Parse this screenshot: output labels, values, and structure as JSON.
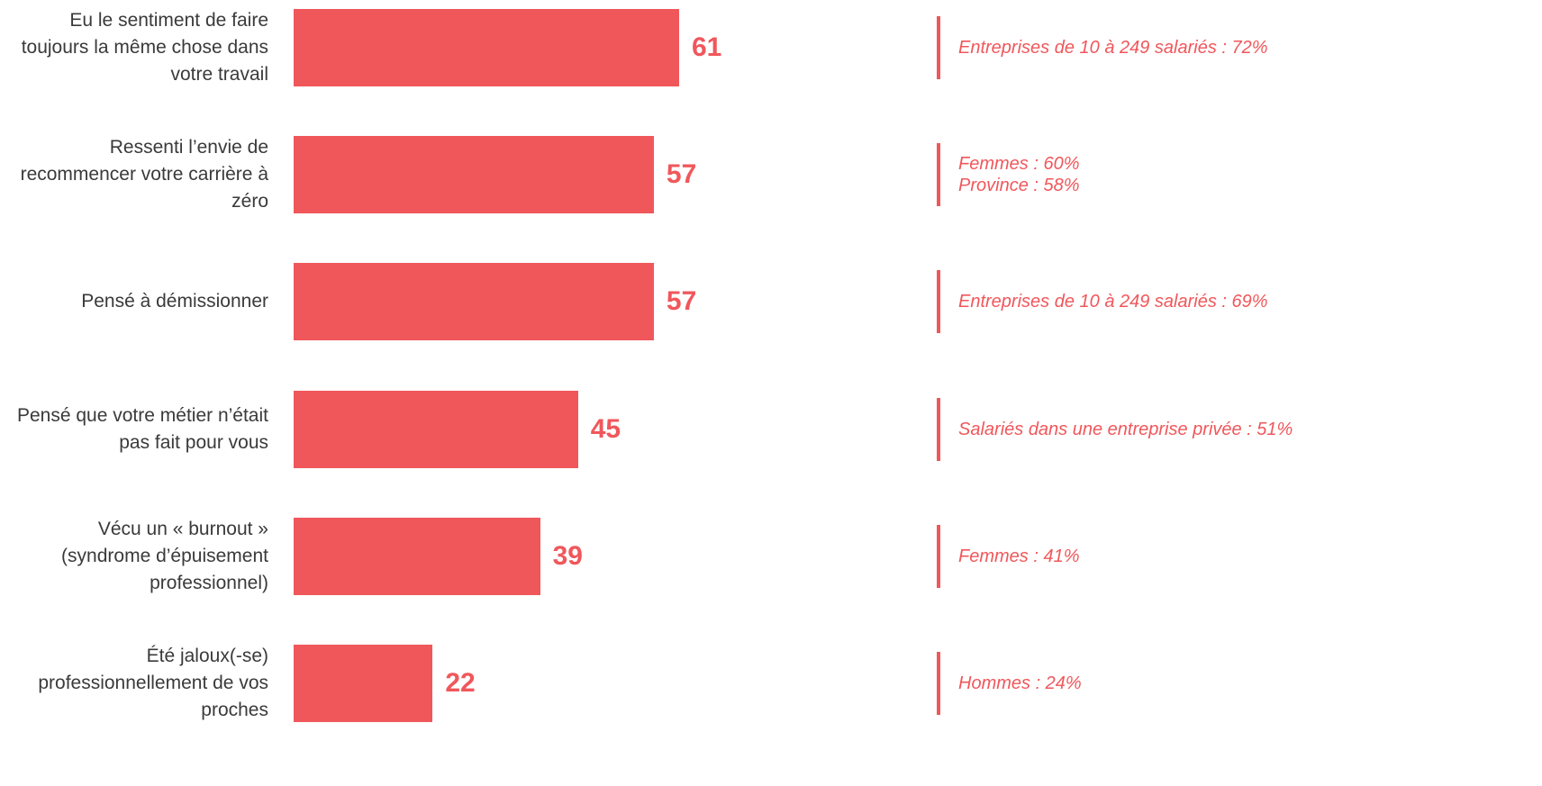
{
  "chart_data": {
    "type": "bar",
    "orientation": "horizontal",
    "color": "#f0575b",
    "categories": [
      "Eu le sentiment de faire toujours la même chose dans votre travail",
      "Ressenti l’envie de recommencer votre carrière à zéro",
      "Pensé à démissionner",
      "Pensé que votre métier n’était pas fait pour vous",
      "Vécu un « burnout » (syndrome d’épuisement professionnel)",
      "Été jaloux(-se) professionnellement de vos proches"
    ],
    "values": [
      61,
      57,
      57,
      45,
      39,
      22
    ],
    "annotations": [
      [
        "Entreprises de 10 à 249 salariés : 72%"
      ],
      [
        "Femmes  : 60%",
        "Province : 58%"
      ],
      [
        "Entreprises de 10 à 249 salariés : 69%"
      ],
      [
        "Salariés dans une entreprise privée : 51%"
      ],
      [
        "Femmes : 41%"
      ],
      [
        "Hommes : 24%"
      ]
    ]
  }
}
